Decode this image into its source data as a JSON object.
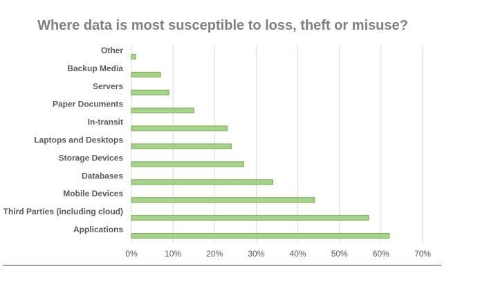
{
  "chart_data": {
    "type": "bar",
    "orientation": "horizontal",
    "title": "Where data is most susceptible to loss, theft or misuse?",
    "categories": [
      "Other",
      "Backup Media",
      "Servers",
      "Paper Documents",
      "In-transit",
      "Laptops and Desktops",
      "Storage Devices",
      "Databases",
      "Mobile Devices",
      "Third Parties (including cloud)",
      "Applications"
    ],
    "values": [
      1,
      7,
      9,
      15,
      23,
      24,
      27,
      34,
      44,
      57,
      62
    ],
    "xlim": [
      0,
      70
    ],
    "x_ticks": [
      0,
      10,
      20,
      30,
      40,
      50,
      60,
      70
    ],
    "x_tick_labels": [
      "0%",
      "10%",
      "20%",
      "30%",
      "40%",
      "50%",
      "60%",
      "70%"
    ],
    "grid": true,
    "legend": "none",
    "colors": {
      "bar_fill": "#a9d18e",
      "bar_stroke": "#70ad47",
      "grid": "#d9d9d9"
    }
  }
}
